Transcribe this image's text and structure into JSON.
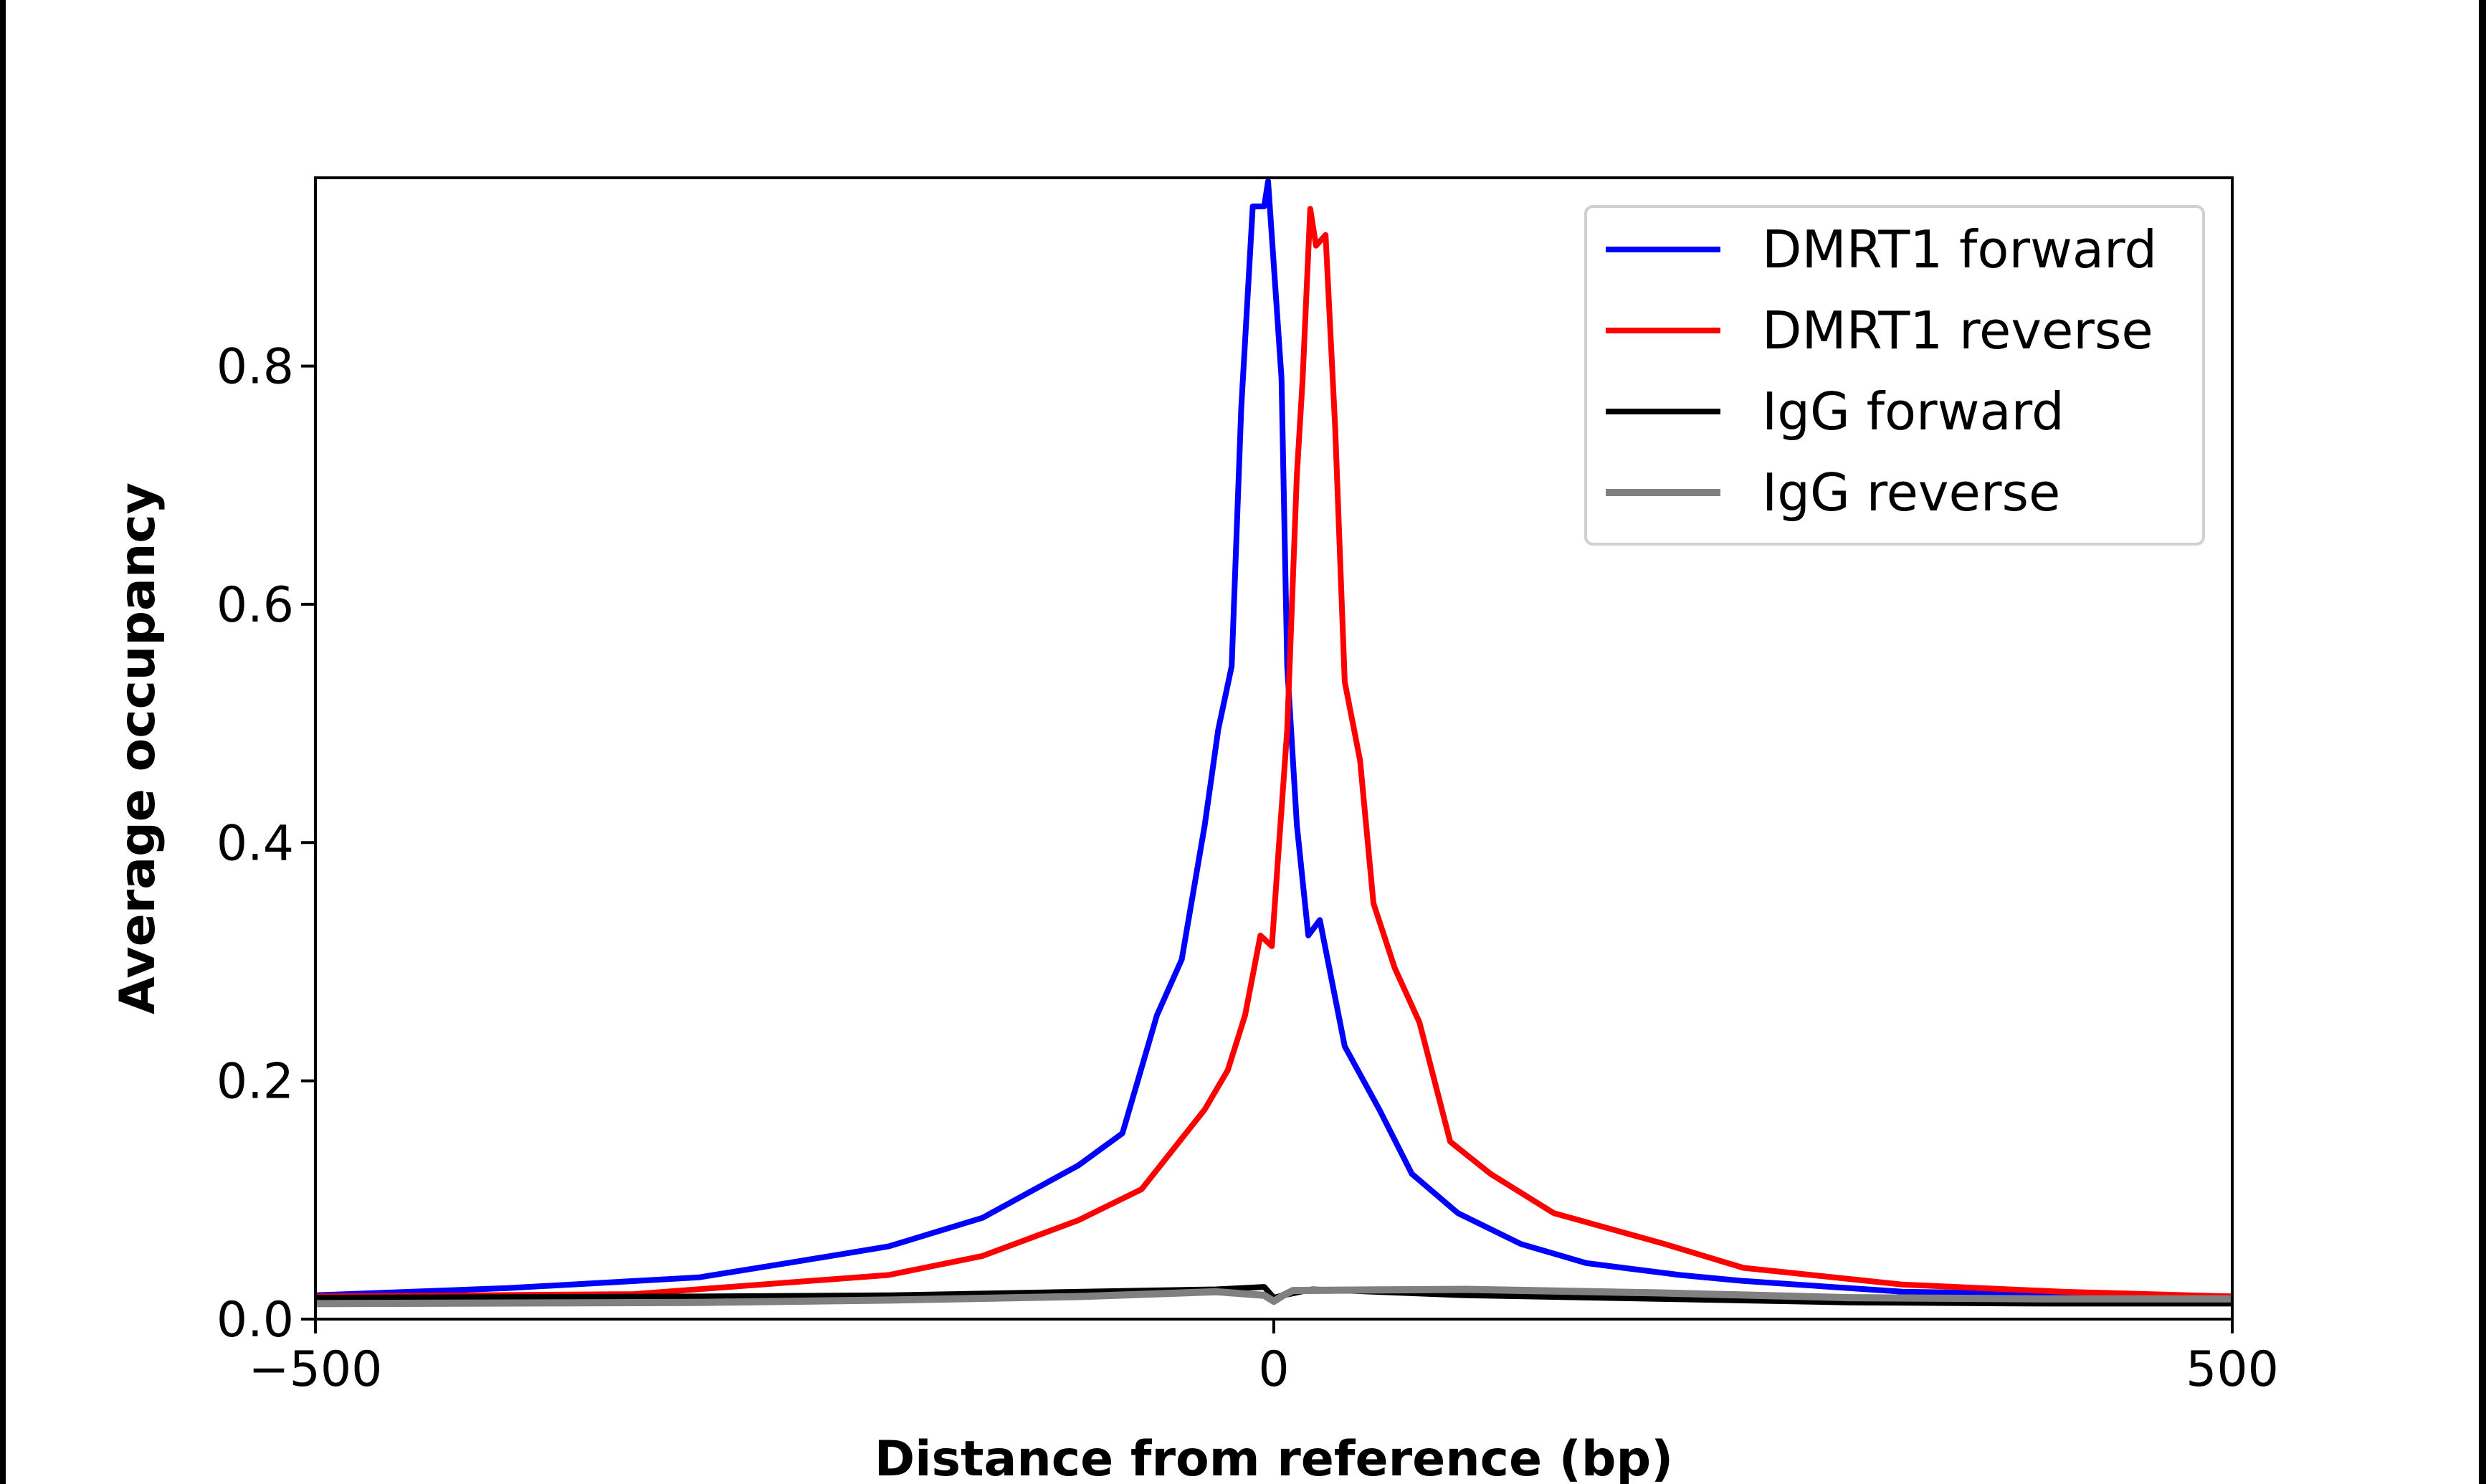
{
  "chart_data": {
    "type": "line",
    "title": "",
    "xlabel": "Distance from reference (bp)",
    "ylabel": "Average occupancy",
    "xlim": [
      -500,
      500
    ],
    "ylim": [
      0,
      0.958
    ],
    "xticks": [
      -500,
      0,
      500
    ],
    "xtick_labels": [
      "−500",
      "0",
      "500"
    ],
    "yticks": [
      0.0,
      0.2,
      0.4,
      0.6,
      0.8
    ],
    "ytick_labels": [
      "0.0",
      "0.2",
      "0.4",
      "0.6",
      "0.8"
    ],
    "grid": false,
    "legend": "top-right",
    "series": [
      {
        "name": "DMRT1 forward",
        "color": "#0000ff",
        "x": [
          -500,
          -400,
          -300,
          -250,
          -201,
          -152,
          -102,
          -79,
          -61,
          -48,
          -36,
          -29,
          -22,
          -17,
          -11,
          -5,
          -3,
          4,
          7,
          12,
          18,
          24,
          37,
          55,
          72,
          96,
          129,
          163,
          212,
          245,
          328,
          500
        ],
        "y": [
          0.02,
          0.026,
          0.035,
          0.048,
          0.061,
          0.085,
          0.129,
          0.156,
          0.255,
          0.302,
          0.415,
          0.495,
          0.548,
          0.764,
          0.934,
          0.934,
          0.955,
          0.79,
          0.548,
          0.415,
          0.322,
          0.335,
          0.229,
          0.176,
          0.122,
          0.089,
          0.063,
          0.047,
          0.037,
          0.032,
          0.023,
          0.019
        ]
      },
      {
        "name": "DMRT1 reverse",
        "color": "#ff0000",
        "x": [
          -500,
          -334,
          -201,
          -152,
          -102,
          -69,
          -36,
          -24,
          -15,
          -7,
          -1,
          2,
          7,
          12,
          15,
          19,
          22,
          27,
          32,
          37,
          45,
          52,
          63,
          76,
          92,
          113,
          146,
          175,
          204,
          245,
          328,
          411,
          500
        ],
        "y": [
          0.019,
          0.021,
          0.037,
          0.053,
          0.083,
          0.109,
          0.176,
          0.209,
          0.255,
          0.322,
          0.313,
          0.382,
          0.495,
          0.708,
          0.788,
          0.932,
          0.901,
          0.91,
          0.748,
          0.535,
          0.469,
          0.349,
          0.295,
          0.249,
          0.149,
          0.122,
          0.089,
          0.076,
          0.063,
          0.043,
          0.029,
          0.023,
          0.019
        ]
      },
      {
        "name": "IgG forward",
        "color": "#000000",
        "x": [
          -500,
          -300,
          -200,
          -100,
          -30,
          -5,
          0,
          5,
          20,
          100,
          200,
          300,
          400,
          500
        ],
        "y": [
          0.018,
          0.019,
          0.02,
          0.023,
          0.025,
          0.027,
          0.018,
          0.02,
          0.025,
          0.02,
          0.017,
          0.014,
          0.013,
          0.013
        ]
      },
      {
        "name": "IgG reverse",
        "color": "#808080",
        "x": [
          -500,
          -300,
          -200,
          -100,
          -30,
          -5,
          0,
          5,
          10,
          100,
          200,
          300,
          400,
          500
        ],
        "y": [
          0.013,
          0.014,
          0.016,
          0.019,
          0.023,
          0.02,
          0.015,
          0.02,
          0.024,
          0.025,
          0.022,
          0.018,
          0.017,
          0.017
        ]
      }
    ]
  }
}
